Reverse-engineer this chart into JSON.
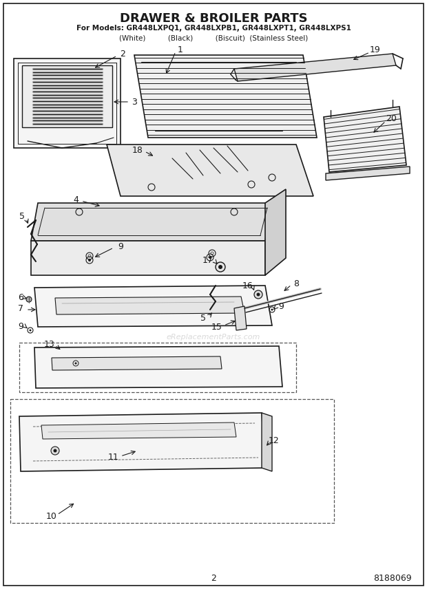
{
  "title": "DRAWER & BROILER PARTS",
  "subtitle_line1": "For Models: GR448LXPQ1, GR448LXPB1, GR448LXPT1, GR448LXPS1",
  "subtitle_line2": "(White)          (Black)          (Biscuit)  (Stainless Steel)",
  "page_number": "2",
  "doc_number": "8188069",
  "bg_color": "#ffffff",
  "lc": "#1a1a1a",
  "watermark": "eReplacementParts.com",
  "figsize": [
    6.2,
    8.56
  ],
  "dpi": 100
}
